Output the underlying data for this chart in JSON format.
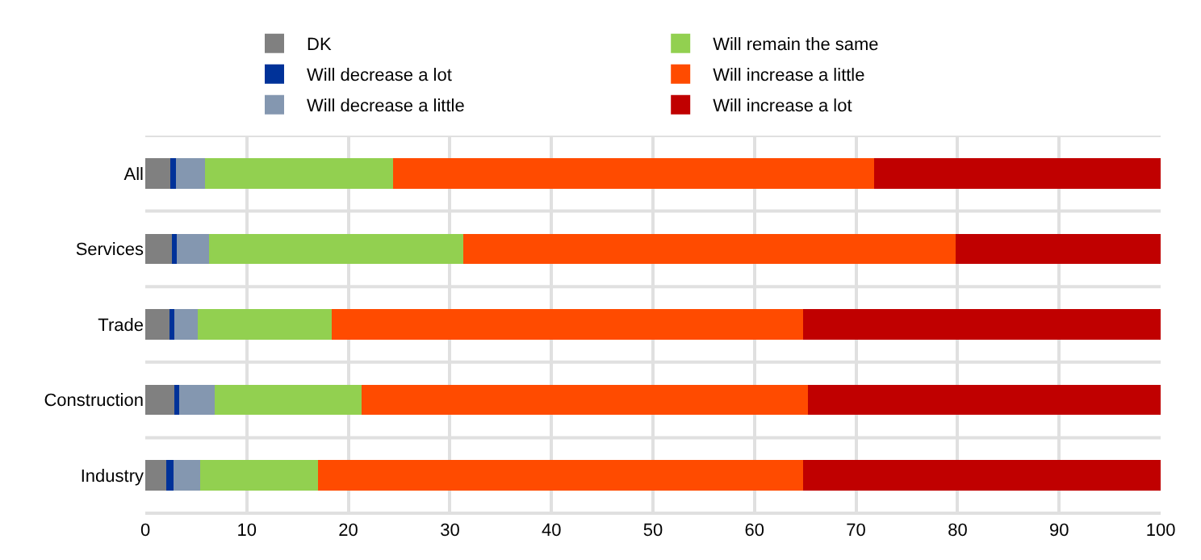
{
  "chart_data": {
    "type": "bar",
    "orientation": "horizontal",
    "stacked": true,
    "categories": [
      "All",
      "Services",
      "Trade",
      "Construction",
      "Industry"
    ],
    "series": [
      {
        "name": "DK",
        "color": "#808080",
        "values": [
          2.5,
          2.6,
          2.4,
          3.0,
          2.1
        ]
      },
      {
        "name": "Will decrease a lot",
        "color": "#003299",
        "values": [
          0.5,
          0.5,
          0.5,
          0.3,
          0.7
        ]
      },
      {
        "name": "Will decrease a little",
        "color": "#8497b0",
        "values": [
          2.9,
          3.2,
          2.3,
          3.5,
          2.6
        ]
      },
      {
        "name": "Will remain the same",
        "color": "#92d050",
        "values": [
          18.5,
          25.0,
          13.2,
          14.5,
          11.6
        ]
      },
      {
        "name": "Will increase a little",
        "color": "#ff4b00",
        "values": [
          47.4,
          48.5,
          46.4,
          44.0,
          47.8
        ]
      },
      {
        "name": "Will increase a lot",
        "color": "#c00000",
        "values": [
          28.2,
          20.2,
          35.2,
          34.7,
          35.2
        ]
      }
    ],
    "xlim": [
      0,
      100
    ],
    "xticks": [
      0,
      10,
      20,
      30,
      40,
      50,
      60,
      70,
      80,
      90,
      100
    ],
    "grid": true,
    "legend": "top"
  }
}
